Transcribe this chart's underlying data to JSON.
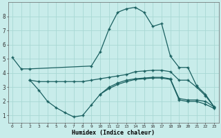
{
  "xlabel": "Humidex (Indice chaleur)",
  "background_color": "#c8ecea",
  "grid_color": "#a8d8d4",
  "line_color": "#1a6060",
  "xticks": [
    0,
    1,
    2,
    3,
    4,
    5,
    6,
    7,
    8,
    9,
    10,
    11,
    12,
    13,
    14,
    15,
    16,
    17,
    18,
    19,
    20,
    21,
    22,
    23
  ],
  "yticks": [
    1,
    2,
    3,
    4,
    5,
    6,
    7,
    8
  ],
  "line1_x": [
    0,
    1,
    2,
    9,
    10,
    11,
    12,
    13,
    14,
    15,
    16,
    17,
    18,
    19,
    20,
    21,
    22,
    23
  ],
  "line1_y": [
    5.1,
    4.3,
    4.3,
    4.5,
    5.5,
    7.1,
    8.3,
    8.55,
    8.65,
    8.3,
    7.3,
    7.5,
    5.2,
    4.4,
    4.4,
    3.1,
    2.5,
    1.6
  ],
  "line2_x": [
    2,
    3,
    4,
    5,
    6,
    7,
    8,
    9,
    10,
    11,
    12,
    13,
    14,
    15,
    16,
    17,
    18,
    19,
    20,
    21,
    22,
    23
  ],
  "line2_y": [
    3.5,
    3.4,
    3.4,
    3.4,
    3.4,
    3.4,
    3.4,
    3.5,
    3.6,
    3.7,
    3.8,
    3.9,
    4.1,
    4.15,
    4.2,
    4.2,
    4.1,
    3.5,
    3.5,
    3.0,
    2.4,
    1.6
  ],
  "line3_x": [
    2,
    3,
    4,
    5,
    6,
    7,
    8,
    9,
    10,
    11,
    12,
    13,
    14,
    15,
    16,
    17,
    18,
    19,
    20,
    21,
    22,
    23
  ],
  "line3_y": [
    3.5,
    2.8,
    2.0,
    1.55,
    1.2,
    0.9,
    1.0,
    1.75,
    2.5,
    3.0,
    3.3,
    3.5,
    3.6,
    3.65,
    3.7,
    3.7,
    3.6,
    2.2,
    2.1,
    2.1,
    2.0,
    1.6
  ],
  "line4_x": [
    10,
    11,
    12,
    13,
    14,
    15,
    16,
    17,
    18,
    19,
    20,
    21,
    22,
    23
  ],
  "line4_y": [
    2.5,
    2.9,
    3.2,
    3.4,
    3.55,
    3.6,
    3.65,
    3.65,
    3.55,
    2.1,
    2.0,
    2.0,
    1.8,
    1.5
  ]
}
